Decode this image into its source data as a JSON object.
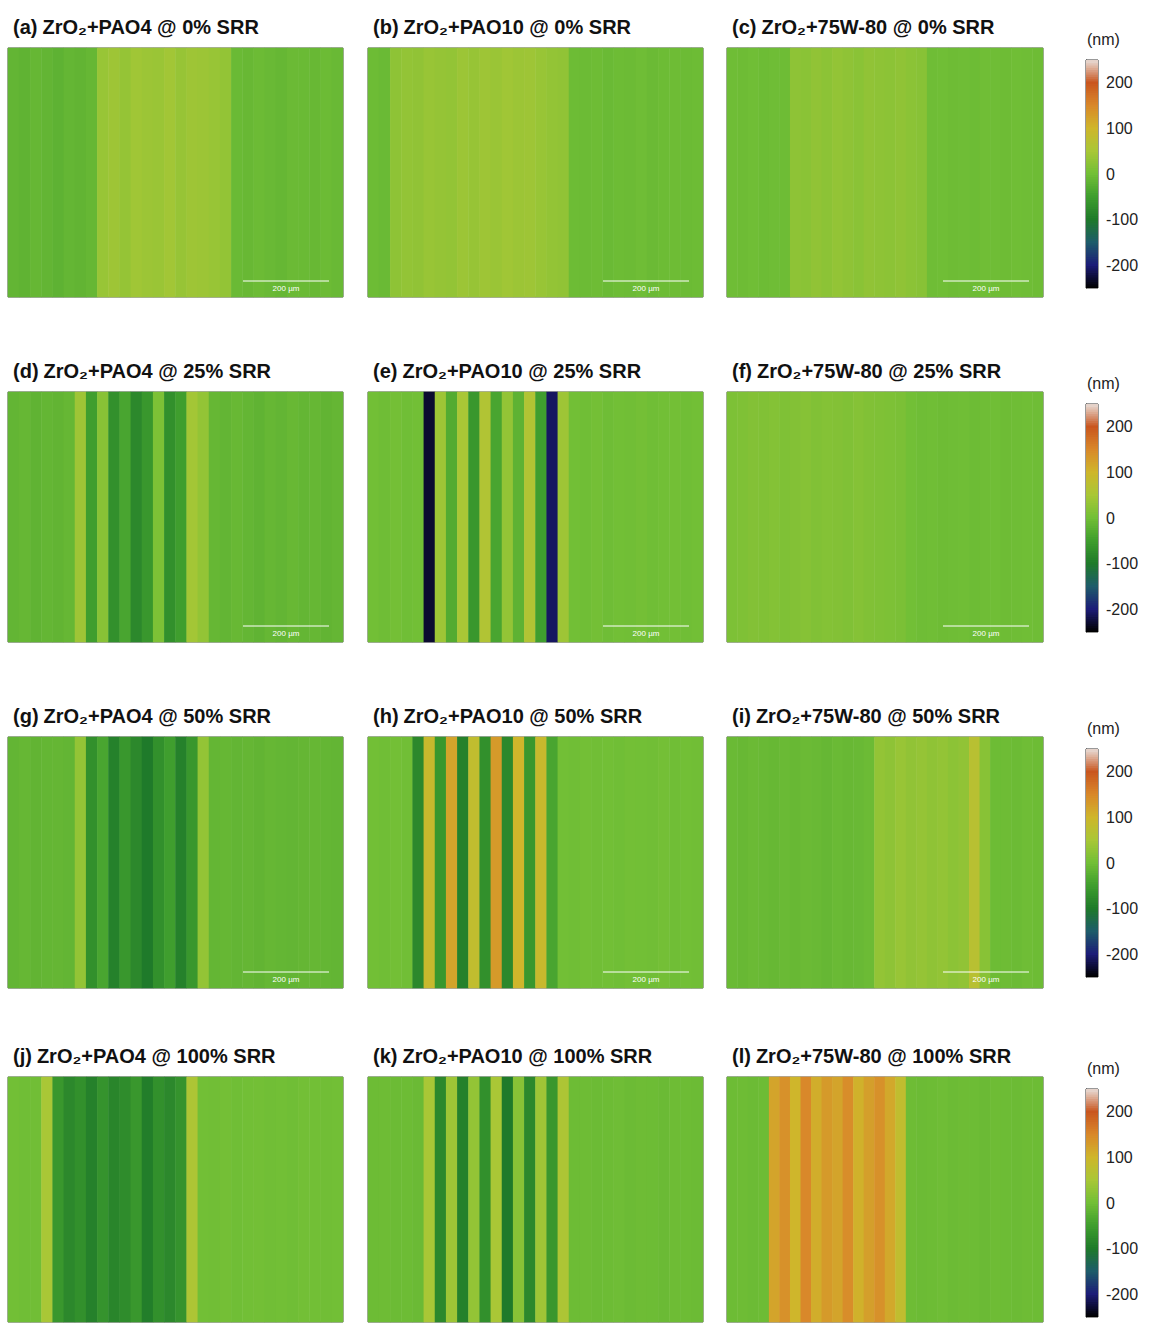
{
  "chart_data": {
    "type": "heatmap",
    "tick_labels": false,
    "colorbar": {
      "label": "(nm)",
      "range": [
        -250,
        250
      ],
      "ticks": [
        -200,
        -100,
        0,
        100,
        200
      ],
      "colors": [
        "#000000",
        "#1c1c78",
        "#1e5c6a",
        "#1f7a2a",
        "#3f9e2e",
        "#72bf36",
        "#a9c736",
        "#cfb62b",
        "#d9882a",
        "#c9561f",
        "#e8e0dc"
      ]
    },
    "panels": [
      {
        "label": "(a)",
        "title": "ZrO₂+PAO4 @ 0% SRR",
        "scale_bar": "200 µm",
        "values": [
          -15,
          -18,
          -12,
          -15,
          -20,
          -14,
          -16,
          -12,
          35,
          40,
          32,
          42,
          38,
          36,
          44,
          34,
          40,
          38,
          35,
          30,
          -8,
          -10,
          -6,
          -9,
          -12,
          -7,
          -8,
          -10,
          -6,
          -9
        ]
      },
      {
        "label": "(b)",
        "title": "ZrO₂+PAO10 @ 0% SRR",
        "scale_bar": "200 µm",
        "values": [
          -5,
          -8,
          25,
          30,
          28,
          35,
          32,
          30,
          38,
          34,
          40,
          36,
          42,
          38,
          40,
          35,
          30,
          28,
          -5,
          -6,
          -4,
          -8,
          -5,
          -6,
          -3,
          -7,
          -5,
          -4,
          -6,
          -5
        ]
      },
      {
        "label": "(c)",
        "title": "ZrO₂+75W-80 @ 0% SRR",
        "scale_bar": "200 µm",
        "values": [
          -3,
          -4,
          -2,
          -5,
          -3,
          -4,
          25,
          22,
          28,
          24,
          30,
          26,
          22,
          28,
          25,
          24,
          27,
          23,
          20,
          -3,
          -2,
          -4,
          -3,
          -5,
          -2,
          -3,
          -4,
          -2,
          -3,
          -4
        ]
      },
      {
        "label": "(d)",
        "title": "ZrO₂+PAO4 @ 25% SRR",
        "scale_bar": "200 µm",
        "values": [
          -15,
          -12,
          -18,
          -14,
          -16,
          -12,
          40,
          -50,
          20,
          -70,
          -40,
          -80,
          -60,
          10,
          -70,
          -50,
          45,
          30,
          -12,
          -15,
          -10,
          -14,
          -18,
          -12,
          -15,
          -10,
          -14,
          -12,
          -16,
          -13
        ]
      },
      {
        "label": "(e)",
        "title": "ZrO₂+PAO10 @ 25% SRR",
        "scale_bar": "200 µm",
        "values": [
          0,
          -3,
          2,
          -2,
          0,
          -230,
          40,
          -30,
          50,
          -60,
          60,
          -40,
          30,
          -20,
          60,
          -50,
          -210,
          40,
          0,
          -2,
          2,
          -3,
          0,
          -1,
          2,
          -2,
          0,
          1,
          -2,
          0
        ]
      },
      {
        "label": "(f)",
        "title": "ZrO₂+75W-80 @ 25% SRR",
        "scale_bar": "200 µm",
        "values": [
          10,
          12,
          15,
          14,
          16,
          12,
          15,
          18,
          14,
          16,
          15,
          13,
          17,
          14,
          12,
          10,
          8,
          0,
          -3,
          -2,
          -4,
          -3,
          -2,
          -5,
          -3,
          -2,
          -4,
          -3,
          -2,
          -3
        ]
      },
      {
        "label": "(g)",
        "title": "ZrO₂+PAO4 @ 50% SRR",
        "scale_bar": "200 µm",
        "values": [
          -15,
          -12,
          -16,
          -14,
          -13,
          -15,
          30,
          -70,
          -40,
          -90,
          -60,
          -80,
          -100,
          -70,
          -50,
          -90,
          -60,
          30,
          -14,
          -12,
          -15,
          -13,
          -16,
          -12,
          -14,
          -15,
          -13,
          -12,
          -14,
          -15
        ]
      },
      {
        "label": "(h)",
        "title": "ZrO₂+PAO10 @ 50% SRR",
        "scale_bar": "200 µm",
        "values": [
          0,
          -2,
          1,
          -1,
          -80,
          90,
          -60,
          120,
          -90,
          80,
          -70,
          130,
          -80,
          100,
          -60,
          90,
          -40,
          0,
          -2,
          1,
          -1,
          0,
          -2,
          1,
          0,
          -1,
          2,
          -2,
          0,
          -1
        ]
      },
      {
        "label": "(i)",
        "title": "ZrO₂+75W-80 @ 50% SRR",
        "scale_bar": "200 µm",
        "values": [
          -8,
          -10,
          -7,
          -9,
          -11,
          -8,
          -10,
          -7,
          -9,
          -12,
          -8,
          -10,
          -9,
          -6,
          30,
          25,
          35,
          28,
          32,
          26,
          30,
          24,
          28,
          70,
          20,
          -5,
          -4,
          -6,
          -3,
          -5
        ]
      },
      {
        "label": "(j)",
        "title": "ZrO₂+PAO4 @ 100% SRR",
        "values": [
          0,
          -2,
          -1,
          50,
          -60,
          -80,
          -70,
          -90,
          -65,
          -85,
          -75,
          -60,
          -95,
          -70,
          -80,
          -65,
          55,
          0,
          -1,
          2,
          -2,
          0,
          1,
          -1,
          0,
          -2,
          1,
          0,
          -1,
          0
        ]
      },
      {
        "label": "(k)",
        "title": "ZrO₂+PAO10 @ 100% SRR",
        "values": [
          -5,
          -4,
          -6,
          -5,
          -7,
          50,
          -80,
          40,
          -90,
          30,
          -70,
          50,
          -100,
          20,
          -80,
          40,
          -60,
          55,
          -5,
          -4,
          -6,
          -5,
          -3,
          -6,
          -4,
          -5,
          -7,
          -4,
          -5,
          -6
        ]
      },
      {
        "label": "(l)",
        "title": "ZrO₂+75W-80 @ 100% SRR",
        "values": [
          -5,
          -4,
          -6,
          -5,
          120,
          140,
          100,
          150,
          110,
          130,
          120,
          145,
          105,
          125,
          140,
          115,
          80,
          -4,
          -6,
          -5,
          -3,
          -6,
          -4,
          -5,
          -7,
          -4,
          -5,
          -6,
          -4,
          -5
        ]
      }
    ]
  }
}
